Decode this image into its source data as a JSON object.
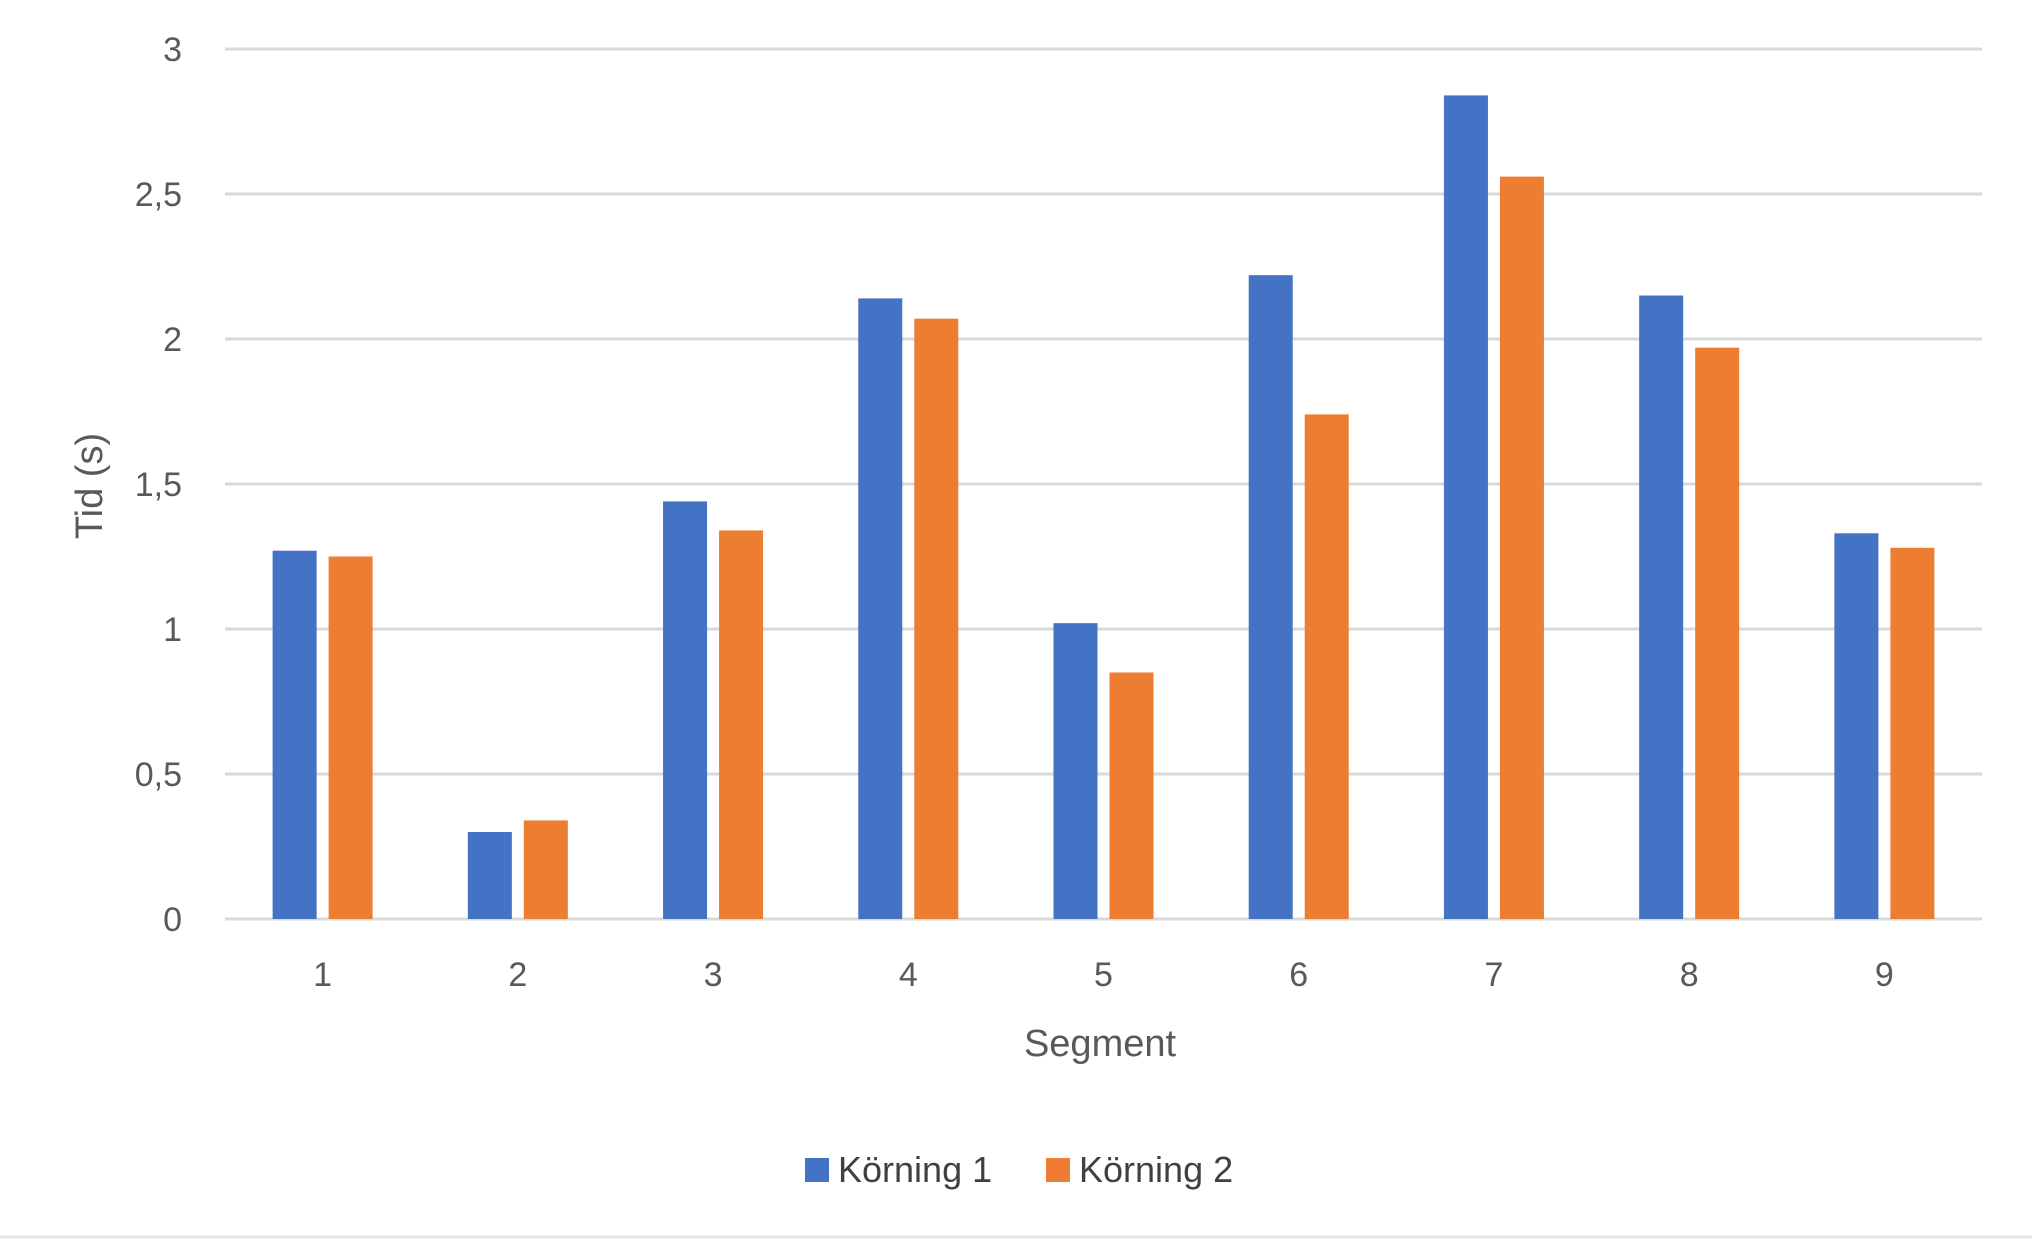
{
  "chart_data": {
    "type": "bar",
    "xlabel": "Segment",
    "ylabel": "Tid (s)",
    "categories": [
      "1",
      "2",
      "3",
      "4",
      "5",
      "6",
      "7",
      "8",
      "9"
    ],
    "series": [
      {
        "name": "Körning 1",
        "color": "#4472c4",
        "values": [
          1.27,
          0.3,
          1.44,
          2.14,
          1.02,
          2.22,
          2.84,
          2.15,
          1.33
        ]
      },
      {
        "name": "Körning 2",
        "color": "#ed7d31",
        "values": [
          1.25,
          0.34,
          1.34,
          2.07,
          0.85,
          1.74,
          2.56,
          1.97,
          1.28
        ]
      }
    ],
    "ylim": [
      0,
      3
    ],
    "yticks": [
      0,
      0.5,
      1,
      1.5,
      2,
      2.5,
      3
    ],
    "ytick_labels": [
      "0",
      "0,5",
      "1",
      "1,5",
      "2",
      "2,5",
      "3"
    ],
    "grid": true,
    "legend_position": "bottom-center"
  }
}
